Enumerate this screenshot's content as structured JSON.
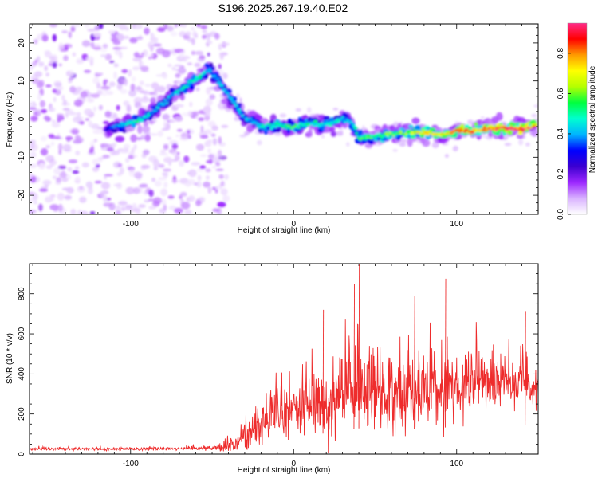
{
  "title": "S196.2025.267.19.40.E02",
  "chart_data": [
    {
      "type": "heatmap",
      "xlabel": "Height of straight line (km)",
      "ylabel": "Frequency (Hz)",
      "xlim": [
        -162,
        150
      ],
      "ylim": [
        -25,
        25
      ],
      "x_ticks": [
        -100,
        0,
        100
      ],
      "y_ticks": [
        -20,
        -10,
        0,
        10,
        20
      ],
      "colorbar": {
        "label": "Normalized spectral amplitude",
        "range": [
          0,
          0.95
        ],
        "ticks": [
          0.0,
          0.2,
          0.4,
          0.6,
          0.8
        ],
        "colors": [
          "#ffffff",
          "#d9b3ff",
          "#9c27ff",
          "#3c00d0",
          "#0000ff",
          "#00b4ff",
          "#00ffd0",
          "#00ff40",
          "#b4ff00",
          "#ffff00",
          "#ff9a00",
          "#ff0000",
          "#ff2b8a"
        ]
      },
      "ridge": {
        "name": "dominant frequency track",
        "x": [
          -115,
          -105,
          -95,
          -88,
          -80,
          -72,
          -65,
          -58,
          -52,
          -47,
          -43,
          -38,
          -33,
          -28,
          -24,
          -18,
          -10,
          0,
          10,
          20,
          30,
          36,
          40,
          50,
          60,
          70,
          80,
          90,
          100,
          110,
          120,
          130,
          140,
          148
        ],
        "freq": [
          -2.5,
          -1.5,
          -0.5,
          1.5,
          4,
          7,
          9,
          11,
          13,
          10.5,
          8,
          5,
          2,
          -0.5,
          -1,
          -2,
          -1.5,
          -2,
          -1,
          -1.5,
          0,
          -1,
          -5,
          -4.5,
          -4,
          -3.5,
          -3.5,
          -4,
          -3,
          -3,
          -2.5,
          -2.5,
          -2.5,
          -2
        ],
        "amplitude": [
          0.3,
          0.45,
          0.5,
          0.45,
          0.4,
          0.45,
          0.5,
          0.55,
          0.4,
          0.4,
          0.45,
          0.4,
          0.45,
          0.4,
          0.45,
          0.5,
          0.5,
          0.55,
          0.5,
          0.5,
          0.45,
          0.45,
          0.55,
          0.55,
          0.6,
          0.65,
          0.7,
          0.75,
          0.8,
          0.85,
          0.88,
          0.9,
          0.9,
          0.85
        ]
      },
      "noise_region_x": [
        -162,
        -49
      ]
    },
    {
      "type": "line",
      "xlabel": "Height of straight line (km)",
      "ylabel": "SNR (10 * v/v)",
      "xlim": [
        -162,
        150
      ],
      "ylim": [
        0,
        950
      ],
      "x_ticks": [
        -100,
        0,
        100
      ],
      "y_ticks": [
        0,
        200,
        400,
        600,
        800
      ],
      "series": [
        {
          "name": "SNR",
          "color": "#ee2c2c",
          "envelope_x": [
            -162,
            -120,
            -80,
            -50,
            -35,
            -30,
            -20,
            -10,
            0,
            10,
            20,
            30,
            40,
            50,
            60,
            70,
            80,
            90,
            95,
            100,
            110,
            120,
            130,
            140,
            150
          ],
          "envelope_mean": [
            25,
            25,
            28,
            30,
            50,
            90,
            160,
            200,
            220,
            240,
            260,
            280,
            320,
            300,
            300,
            310,
            320,
            320,
            340,
            340,
            350,
            360,
            370,
            370,
            350
          ],
          "envelope_amp": [
            8,
            10,
            12,
            15,
            60,
            100,
            150,
            180,
            200,
            220,
            240,
            250,
            300,
            260,
            240,
            240,
            240,
            220,
            220,
            200,
            180,
            170,
            160,
            160,
            140
          ],
          "peaks": [
            {
              "x": 40,
              "y": 945
            },
            {
              "x": 93,
              "y": 875
            },
            {
              "x": 37,
              "y": 850
            },
            {
              "x": 74,
              "y": 790
            },
            {
              "x": 18,
              "y": 720
            },
            {
              "x": 142,
              "y": 710
            }
          ]
        }
      ]
    }
  ]
}
